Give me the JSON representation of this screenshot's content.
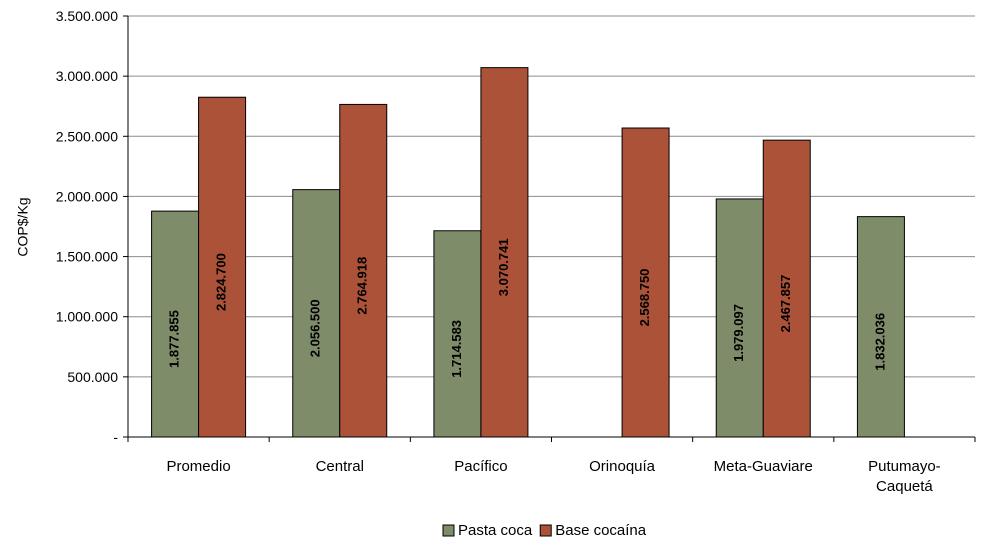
{
  "chart_data": {
    "type": "bar",
    "ylabel": "COP$/Kg",
    "ylim": [
      0,
      3500000
    ],
    "yticks": [
      0,
      500000,
      1000000,
      1500000,
      2000000,
      2500000,
      3000000,
      3500000
    ],
    "ytick_labels": [
      "-",
      "500.000",
      "1.000.000",
      "1.500.000",
      "2.000.000",
      "2.500.000",
      "3.000.000",
      "3.500.000"
    ],
    "categories": [
      [
        "Promedio"
      ],
      [
        "Central"
      ],
      [
        "Pacífico"
      ],
      [
        "Orinoquía"
      ],
      [
        "Meta-Guaviare"
      ],
      [
        "Putumayo-",
        "Caquetá"
      ]
    ],
    "series": [
      {
        "name": "Pasta coca",
        "color": "#7f8c6a",
        "values": [
          1877855,
          2056500,
          1714583,
          null,
          1979097,
          1832036
        ],
        "labels": [
          "1.877.855",
          "2.056.500",
          "1.714.583",
          "",
          "1.979.097",
          "1.832.036"
        ]
      },
      {
        "name": "Base cocaína",
        "color": "#ac5238",
        "values": [
          2824700,
          2764918,
          3070741,
          2568750,
          2467857,
          null
        ],
        "labels": [
          "2.824.700",
          "2.764.918",
          "3.070.741",
          "2.568.750",
          "2.467.857",
          ""
        ]
      }
    ],
    "legend_position": "bottom-center",
    "grid": true
  }
}
